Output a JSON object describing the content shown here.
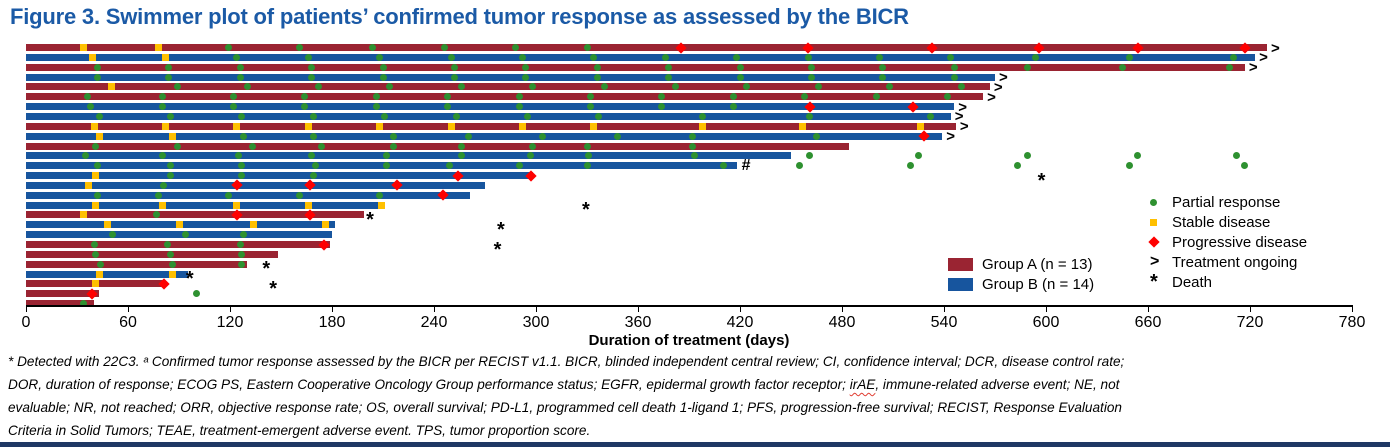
{
  "figure": {
    "title": "Figure 3. Swimmer plot of patients’ confirmed tumor response as assessed by the BICR"
  },
  "chart_data": {
    "type": "swimmer",
    "xlabel": "Duration of treatment (days)",
    "xlim": [
      0,
      780
    ],
    "xticks": [
      0,
      60,
      120,
      180,
      240,
      300,
      360,
      420,
      480,
      540,
      600,
      660,
      720,
      780
    ],
    "grid": false,
    "legend_position": "right",
    "colors": {
      "group_a": "#9a2432",
      "group_b": "#17559e",
      "partial_response": "#2e9130",
      "stable_disease": "#ffc000",
      "progressive_disease": "#fe0000",
      "title_blue": "#1b5aa6",
      "bottom_rule": "#1f3864"
    },
    "groups": [
      {
        "id": "A",
        "label": "Group A (n = 13)",
        "color": "#9a2432"
      },
      {
        "id": "B",
        "label": "Group B (n = 14)",
        "color": "#17559e"
      }
    ],
    "marker_legend": [
      {
        "type": "pr",
        "label": "Partial response"
      },
      {
        "type": "sd",
        "label": "Stable disease"
      },
      {
        "type": "pd",
        "label": "Progressive disease"
      },
      {
        "type": "ongoing",
        "label": "Treatment ongoing",
        "symbol": ">"
      },
      {
        "type": "death",
        "label": "Death",
        "symbol": "*"
      }
    ],
    "rows": [
      {
        "group": "A",
        "end": 730,
        "ongoing": true,
        "sd": [
          34,
          78
        ],
        "pr": [
          119,
          161,
          204,
          246,
          288,
          330
        ],
        "pd": [
          385,
          460,
          533,
          596,
          654,
          717
        ]
      },
      {
        "group": "B",
        "end": 723,
        "ongoing": true,
        "sd": [
          39,
          82
        ],
        "pr": [
          124,
          166,
          208,
          250,
          292,
          334,
          376,
          418,
          460,
          502,
          544,
          594,
          649,
          710
        ]
      },
      {
        "group": "A",
        "end": 717,
        "ongoing": true,
        "pr": [
          42,
          84,
          126,
          168,
          210,
          252,
          294,
          336,
          378,
          420,
          462,
          504,
          546,
          589,
          645,
          708
        ]
      },
      {
        "group": "B",
        "end": 570,
        "ongoing": true,
        "pr": [
          42,
          84,
          126,
          168,
          210,
          252,
          294,
          336,
          378,
          420,
          462,
          504,
          546
        ]
      },
      {
        "group": "A",
        "end": 567,
        "ongoing": true,
        "sd": [
          50
        ],
        "pr": [
          89,
          130,
          172,
          214,
          256,
          298,
          340,
          382,
          424,
          466,
          508,
          550
        ]
      },
      {
        "group": "A",
        "end": 563,
        "ongoing": true,
        "pr": [
          36,
          80,
          122,
          164,
          206,
          248,
          290,
          332,
          374,
          416,
          458,
          500,
          542
        ]
      },
      {
        "group": "B",
        "end": 546,
        "ongoing": true,
        "pr": [
          38,
          80,
          122,
          164,
          206,
          248,
          290,
          332,
          374,
          416
        ],
        "pd": [
          461,
          522
        ]
      },
      {
        "group": "B",
        "end": 544,
        "ongoing": true,
        "pr": [
          43,
          85,
          127,
          169,
          211,
          253,
          295,
          337,
          398,
          461,
          532
        ]
      },
      {
        "group": "A",
        "end": 547,
        "ongoing": true,
        "sd": [
          40,
          82,
          124,
          166,
          208,
          250,
          292,
          334,
          398,
          457,
          526
        ]
      },
      {
        "group": "B",
        "end": 539,
        "ongoing": true,
        "sd": [
          43,
          86
        ],
        "pr": [
          128,
          169,
          216,
          260,
          304,
          348,
          392,
          465
        ],
        "pd": [
          528
        ]
      },
      {
        "group": "A",
        "end": 484,
        "pr": [
          41,
          89,
          133,
          174,
          216,
          256,
          298,
          330,
          392
        ]
      },
      {
        "group": "B",
        "end": 450,
        "pr": [
          35,
          80,
          125,
          168,
          212,
          256,
          297,
          331,
          393
        ],
        "followup_pr": [
          461,
          525,
          589,
          654,
          712
        ]
      },
      {
        "group": "B",
        "end": 418,
        "hash": true,
        "pr": [
          42,
          85,
          127,
          170,
          212,
          249,
          290,
          330,
          410
        ],
        "followup_pr": [
          455,
          520,
          583,
          649,
          717
        ]
      },
      {
        "group": "B",
        "end": 298,
        "death": 598,
        "sd": [
          41
        ],
        "pr": [
          85,
          127,
          169
        ],
        "pd": [
          254,
          297
        ]
      },
      {
        "group": "B",
        "end": 270,
        "sd": [
          37
        ],
        "pr": [
          81
        ],
        "pd": [
          124,
          167,
          218
        ]
      },
      {
        "group": "B",
        "end": 261,
        "pr": [
          42,
          78,
          119,
          161,
          208
        ],
        "pd": [
          245
        ]
      },
      {
        "group": "B",
        "end": 211,
        "death": 330,
        "sd": [
          41,
          80,
          124,
          166,
          209
        ]
      },
      {
        "group": "A",
        "end": 199,
        "death": 203,
        "sd": [
          34
        ],
        "pr": [
          77
        ],
        "pd": [
          124,
          167
        ]
      },
      {
        "group": "B",
        "end": 182,
        "death": 280,
        "sd": [
          48,
          90,
          134,
          176
        ]
      },
      {
        "group": "B",
        "end": 180,
        "pr": [
          51,
          94,
          128
        ]
      },
      {
        "group": "A",
        "end": 179,
        "death": 278,
        "pr": [
          40,
          83,
          126
        ],
        "pd": [
          175
        ]
      },
      {
        "group": "A",
        "end": 148,
        "pr": [
          41,
          85,
          127
        ]
      },
      {
        "group": "A",
        "end": 130,
        "death": 142,
        "pr": [
          44,
          86,
          127
        ]
      },
      {
        "group": "B",
        "end": 95,
        "death": 97,
        "sd": [
          43,
          86
        ]
      },
      {
        "group": "A",
        "end": 82,
        "death": 146,
        "sd": [
          41
        ],
        "pd": [
          81
        ]
      },
      {
        "group": "A",
        "end": 43,
        "pd": [
          39
        ],
        "followup_pr": [
          100
        ]
      },
      {
        "group": "A",
        "end": 40,
        "pr": [
          34
        ]
      }
    ]
  },
  "footnotes": {
    "line1": "* Detected with 22C3. ᵃ Confirmed tumor response assessed by the BICR per RECIST v1.1. BICR, blinded independent central review; CI, confidence interval; DCR, disease control rate;",
    "line2_pre": "DOR, duration of response; ECOG PS, Eastern Cooperative Oncology Group performance status; EGFR, epidermal growth factor receptor; ",
    "line2_irae": "irAE",
    "line2_post": ", immune-related adverse event; NE, not",
    "line3": "evaluable; NR, not reached; ORR, objective response rate; OS, overall survival; PD-L1, programmed cell death 1-ligand 1; PFS, progression-free survival; RECIST, Response Evaluation",
    "line4": "Criteria in Solid Tumors; TEAE, treatment-emergent adverse event. TPS, tumor proportion score."
  }
}
